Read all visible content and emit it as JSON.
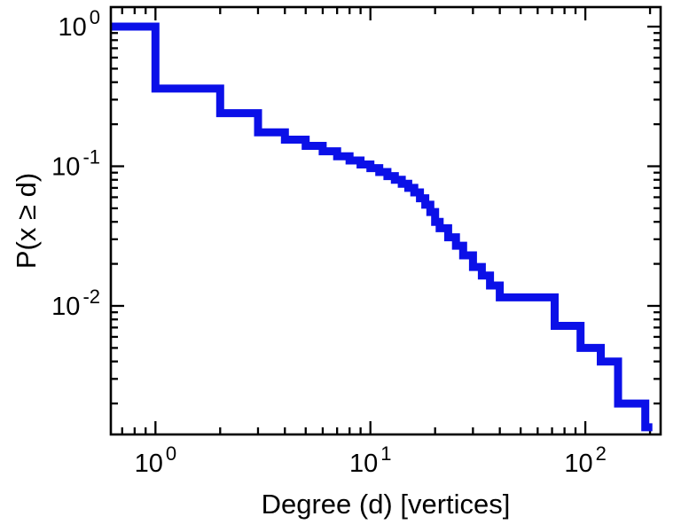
{
  "chart_data": {
    "type": "line",
    "subtype": "step-ccdf-loglog",
    "title": "",
    "xlabel": "Degree (d) [vertices]",
    "ylabel": "P(x ≥ d)",
    "xscale": "log",
    "yscale": "log",
    "xlim": [
      0.62,
      224
    ],
    "ylim": [
      0.0012,
      1.38
    ],
    "grid": false,
    "legend": "none",
    "line_color": "#0b10e8",
    "line_width": 9,
    "axis_color": "#000000",
    "background_color": "#ffffff",
    "x_major_ticks": [
      {
        "value": 1,
        "base": "10",
        "exponent": "0"
      },
      {
        "value": 10,
        "base": "10",
        "exponent": "1"
      },
      {
        "value": 100,
        "base": "10",
        "exponent": "2"
      }
    ],
    "y_major_ticks": [
      {
        "value": 1,
        "base": "10",
        "exponent": "0"
      },
      {
        "value": 0.1,
        "base": "10",
        "exponent": "-1"
      },
      {
        "value": 0.01,
        "base": "10",
        "exponent": "-2"
      }
    ],
    "steps": [
      [
        0.62,
        1.0
      ],
      [
        1,
        0.36
      ],
      [
        2,
        0.24
      ],
      [
        3,
        0.175
      ],
      [
        4,
        0.155
      ],
      [
        5,
        0.14
      ],
      [
        6,
        0.128
      ],
      [
        7,
        0.118
      ],
      [
        8,
        0.11
      ],
      [
        9,
        0.103
      ],
      [
        10,
        0.097
      ],
      [
        11,
        0.091
      ],
      [
        12,
        0.085
      ],
      [
        13,
        0.08
      ],
      [
        14,
        0.075
      ],
      [
        15,
        0.07
      ],
      [
        16,
        0.065
      ],
      [
        17,
        0.059
      ],
      [
        18,
        0.053
      ],
      [
        19,
        0.047
      ],
      [
        20,
        0.04
      ],
      [
        21,
        0.036
      ],
      [
        23,
        0.031
      ],
      [
        25,
        0.027
      ],
      [
        27,
        0.023
      ],
      [
        30,
        0.019
      ],
      [
        33,
        0.0165
      ],
      [
        36,
        0.014
      ],
      [
        40,
        0.0115
      ],
      [
        72,
        0.0072
      ],
      [
        95,
        0.005
      ],
      [
        118,
        0.004
      ],
      [
        142,
        0.002
      ],
      [
        190,
        0.00135
      ]
    ],
    "end_x": 205
  }
}
